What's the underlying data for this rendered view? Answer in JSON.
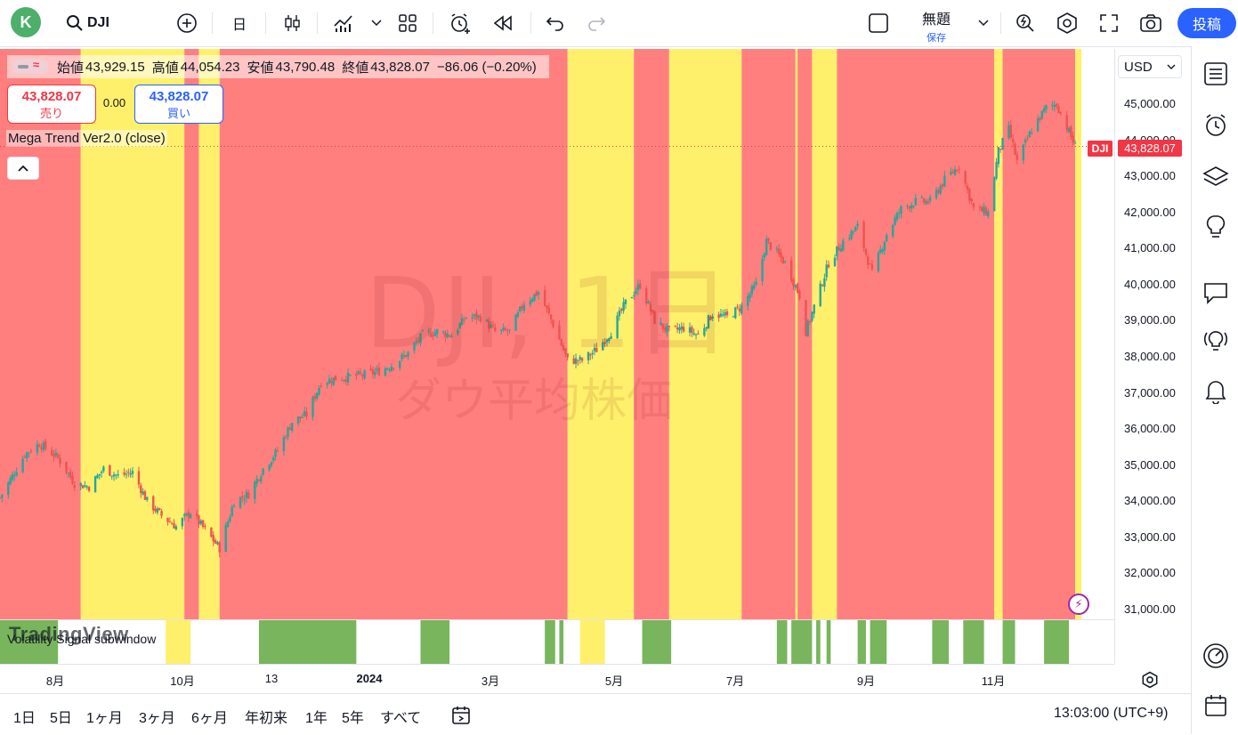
{
  "topbar": {
    "avatar_letter": "K",
    "symbol": "DJI",
    "interval": "日",
    "layout_title": "無題",
    "layout_save": "保存",
    "post_label": "投稿"
  },
  "legend": {
    "open_label": "始値",
    "open": "43,929.15",
    "high_label": "高値",
    "high": "44,054.23",
    "low_label": "安値",
    "low": "43,790.48",
    "close_label": "終値",
    "close": "43,828.07",
    "change": "−86.06 (−0.20%)"
  },
  "trade": {
    "sell_price": "43,828.07",
    "sell_label": "売り",
    "spread": "0.00",
    "buy_price": "43,828.07",
    "buy_label": "買い"
  },
  "indicator": {
    "name": "Mega Trend Ver2.0 (close)",
    "sub_name": "Volatility Signal subwindow"
  },
  "watermark": {
    "line1": "DJI, 1日",
    "line2": "ダウ平均株価"
  },
  "brand": {
    "logo_text": "TradingView"
  },
  "price_axis": {
    "currency": "USD",
    "current_symbol": "DJI",
    "current_price": "43,828.07",
    "labels": [
      "45,000.00",
      "44,000.00",
      "43,000.00",
      "42,000.00",
      "41,000.00",
      "40,000.00",
      "39,000.00",
      "38,000.00",
      "37,000.00",
      "36,000.00",
      "35,000.00",
      "34,000.00",
      "33,000.00",
      "32,000.00",
      "31,000.00"
    ]
  },
  "time_axis": {
    "labels": [
      "8月",
      "10月",
      "13",
      "2024",
      "3月",
      "5月",
      "7月",
      "9月",
      "11月"
    ]
  },
  "bottombar": {
    "ranges": [
      "1日",
      "5日",
      "1ヶ月",
      "3ヶ月",
      "6ヶ月",
      "年初来",
      "1年",
      "5年",
      "すべて"
    ],
    "clock": "13:03:00 (UTC+9)"
  },
  "colors": {
    "bear": "#ff7f7f",
    "neutral": "#fff06b",
    "signal": "#78b55d",
    "up_candle": "#26a69a",
    "down_candle": "#ef5350",
    "accent": "#2962ff"
  },
  "chart_data": {
    "type": "candlestick",
    "symbol": "DJI",
    "interval": "1日",
    "ylim": [
      30800,
      45500
    ],
    "x_range": [
      "2023-07-13",
      "2024-12-20"
    ],
    "close_series_approx": [
      [
        "2023-07-13",
        34100
      ],
      [
        "2023-07-25",
        35300
      ],
      [
        "2023-08-01",
        35600
      ],
      [
        "2023-08-10",
        35200
      ],
      [
        "2023-08-18",
        34500
      ],
      [
        "2023-08-25",
        34400
      ],
      [
        "2023-09-01",
        34900
      ],
      [
        "2023-09-08",
        34700
      ],
      [
        "2023-09-15",
        34800
      ],
      [
        "2023-09-22",
        34000
      ],
      [
        "2023-09-29",
        33600
      ],
      [
        "2023-10-06",
        33300
      ],
      [
        "2023-10-13",
        33700
      ],
      [
        "2023-10-20",
        33200
      ],
      [
        "2023-10-27",
        32700
      ],
      [
        "2023-11-03",
        34000
      ],
      [
        "2023-11-10",
        34200
      ],
      [
        "2023-11-17",
        34900
      ],
      [
        "2023-11-24",
        35400
      ],
      [
        "2023-12-01",
        36200
      ],
      [
        "2023-12-08",
        36400
      ],
      [
        "2023-12-15",
        37300
      ],
      [
        "2023-12-22",
        37400
      ],
      [
        "2024-01-05",
        37500
      ],
      [
        "2024-01-12",
        37600
      ],
      [
        "2024-01-19",
        37800
      ],
      [
        "2024-01-26",
        38100
      ],
      [
        "2024-02-02",
        38600
      ],
      [
        "2024-02-09",
        38700
      ],
      [
        "2024-02-16",
        38600
      ],
      [
        "2024-02-23",
        39100
      ],
      [
        "2024-03-01",
        39100
      ],
      [
        "2024-03-08",
        38700
      ],
      [
        "2024-03-15",
        38700
      ],
      [
        "2024-03-22",
        39500
      ],
      [
        "2024-03-29",
        39800
      ],
      [
        "2024-04-05",
        38900
      ],
      [
        "2024-04-12",
        37900
      ],
      [
        "2024-04-19",
        37900
      ],
      [
        "2024-04-26",
        38200
      ],
      [
        "2024-05-03",
        38700
      ],
      [
        "2024-05-10",
        39500
      ],
      [
        "2024-05-17",
        40000
      ],
      [
        "2024-05-24",
        39000
      ],
      [
        "2024-05-31",
        38700
      ],
      [
        "2024-06-07",
        38800
      ],
      [
        "2024-06-14",
        38600
      ],
      [
        "2024-06-21",
        39200
      ],
      [
        "2024-06-28",
        39100
      ],
      [
        "2024-07-05",
        39400
      ],
      [
        "2024-07-12",
        40000
      ],
      [
        "2024-07-17",
        41200
      ],
      [
        "2024-07-26",
        40600
      ],
      [
        "2024-08-02",
        39700
      ],
      [
        "2024-08-05",
        38700
      ],
      [
        "2024-08-16",
        40600
      ],
      [
        "2024-08-23",
        41200
      ],
      [
        "2024-08-30",
        41600
      ],
      [
        "2024-09-06",
        40300
      ],
      [
        "2024-09-13",
        41400
      ],
      [
        "2024-09-20",
        42100
      ],
      [
        "2024-09-27",
        42300
      ],
      [
        "2024-10-04",
        42300
      ],
      [
        "2024-10-11",
        42900
      ],
      [
        "2024-10-18",
        43300
      ],
      [
        "2024-10-25",
        42100
      ],
      [
        "2024-11-01",
        42000
      ],
      [
        "2024-11-06",
        43700
      ],
      [
        "2024-11-11",
        44300
      ],
      [
        "2024-11-15",
        43400
      ],
      [
        "2024-11-22",
        44300
      ],
      [
        "2024-11-29",
        44900
      ],
      [
        "2024-12-04",
        45000
      ],
      [
        "2024-12-11",
        44100
      ],
      [
        "2024-12-13",
        43828
      ]
    ],
    "trend_zones": [
      [
        "2023-07-13",
        "2023-08-21",
        "bear"
      ],
      [
        "2023-08-21",
        "2023-10-10",
        "neutral"
      ],
      [
        "2023-10-10",
        "2023-10-17",
        "bear"
      ],
      [
        "2023-10-17",
        "2023-10-27",
        "neutral"
      ],
      [
        "2023-10-27",
        "2024-04-12",
        "bear"
      ],
      [
        "2024-04-12",
        "2024-05-14",
        "neutral"
      ],
      [
        "2024-05-14",
        "2024-05-31",
        "bear"
      ],
      [
        "2024-05-31",
        "2024-07-05",
        "neutral"
      ],
      [
        "2024-07-05",
        "2024-07-31",
        "bear"
      ],
      [
        "2024-07-31",
        "2024-08-01",
        "neutral"
      ],
      [
        "2024-08-01",
        "2024-08-08",
        "bear"
      ],
      [
        "2024-08-08",
        "2024-08-20",
        "neutral"
      ],
      [
        "2024-08-20",
        "2024-11-04",
        "bear"
      ],
      [
        "2024-11-04",
        "2024-11-08",
        "neutral"
      ],
      [
        "2024-11-08",
        "2024-12-13",
        "bear"
      ],
      [
        "2024-12-13",
        "2024-12-16",
        "neutral"
      ]
    ],
    "subwindow_blocks": [
      [
        "2023-07-13",
        "2023-08-10",
        "signal"
      ],
      [
        "2023-10-01",
        "2023-10-13",
        "neutral"
      ],
      [
        "2023-11-15",
        "2024-01-01",
        "signal"
      ],
      [
        "2024-02-01",
        "2024-02-15",
        "signal"
      ],
      [
        "2024-04-01",
        "2024-04-06",
        "signal"
      ],
      [
        "2024-04-08",
        "2024-04-10",
        "signal"
      ],
      [
        "2024-04-18",
        "2024-04-30",
        "neutral"
      ],
      [
        "2024-05-18",
        "2024-06-01",
        "signal"
      ],
      [
        "2024-07-22",
        "2024-07-27",
        "signal"
      ],
      [
        "2024-07-29",
        "2024-08-08",
        "signal"
      ],
      [
        "2024-08-10",
        "2024-08-12",
        "signal"
      ],
      [
        "2024-08-15",
        "2024-08-17",
        "signal"
      ],
      [
        "2024-08-30",
        "2024-09-03",
        "signal"
      ],
      [
        "2024-09-05",
        "2024-09-13",
        "signal"
      ],
      [
        "2024-10-05",
        "2024-10-13",
        "signal"
      ],
      [
        "2024-10-20",
        "2024-10-30",
        "signal"
      ],
      [
        "2024-11-08",
        "2024-11-14",
        "signal"
      ],
      [
        "2024-11-28",
        "2024-12-10",
        "signal"
      ]
    ]
  }
}
